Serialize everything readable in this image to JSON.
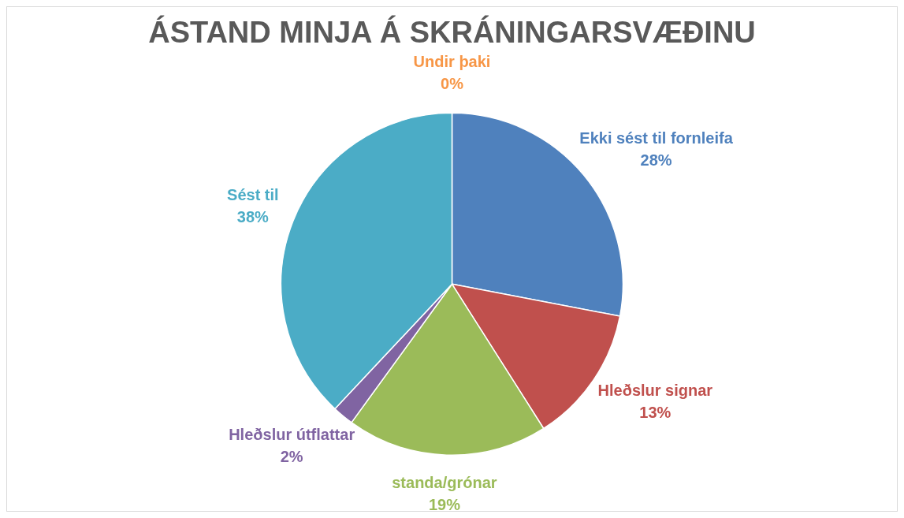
{
  "chart_data": {
    "type": "pie",
    "title": "ÁSTAND MINJA Á SKRÁNINGARSVÆÐINU",
    "categories": [
      "Ekki sést til fornleifa",
      "Hleðslur signar",
      "standa/grónar",
      "Hleðslur útflattar",
      "Sést til",
      "Undir þaki"
    ],
    "values": [
      28,
      13,
      19,
      2,
      38,
      0
    ],
    "colors": [
      "#4f81bd",
      "#c0504d",
      "#9bbb59",
      "#8064a2",
      "#4bacc6",
      "#f79646"
    ],
    "value_labels": [
      "28%",
      "13%",
      "19%",
      "2%",
      "38%",
      "0%"
    ],
    "legend": false
  }
}
